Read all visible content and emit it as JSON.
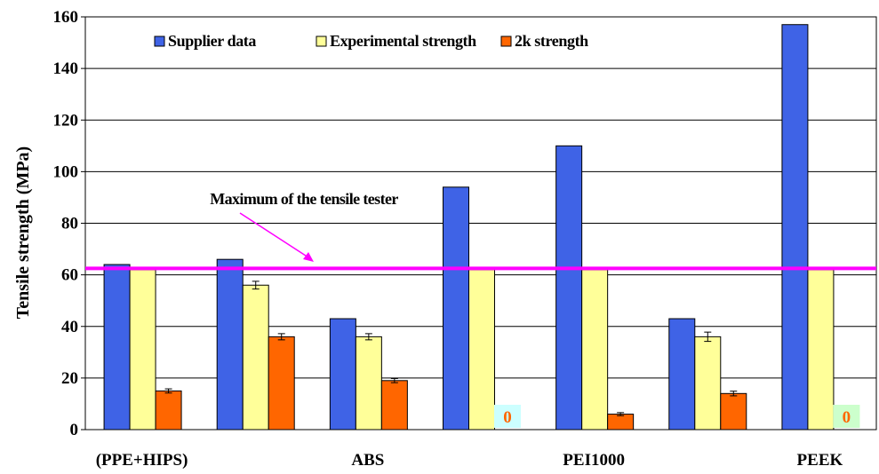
{
  "chart_data": {
    "type": "bar",
    "ylabel": "Tensile strength (MPa)",
    "xlabel": "",
    "ylim": [
      0,
      160
    ],
    "yticks": [
      "0",
      "20",
      "40",
      "60",
      "80",
      "100",
      "120",
      "140",
      "160"
    ],
    "grid": "horizontal",
    "legend_position": "top",
    "groups": 7,
    "category_labels": [
      {
        "text": "(PPE+HIPS)",
        "at_group": 0
      },
      {
        "text": "ABS",
        "at_group": 2
      },
      {
        "text": "PEI1000",
        "at_group": 4
      },
      {
        "text": "PEEK",
        "at_group": 6
      }
    ],
    "series": [
      {
        "name": "Supplier data",
        "color": "#3f63e6",
        "values": [
          64,
          66,
          43,
          94,
          110,
          43,
          157
        ],
        "error": [
          0,
          0,
          0,
          0,
          0,
          0,
          0
        ]
      },
      {
        "name": "Experimental strength",
        "color": "#ffff99",
        "values": [
          62,
          56,
          36,
          62,
          62,
          36,
          62
        ],
        "error": [
          0,
          1.5,
          1.2,
          0,
          0,
          1.8,
          0
        ]
      },
      {
        "name": "2k strength",
        "color": "#ff6600",
        "values": [
          15,
          36,
          19,
          0,
          6,
          14,
          0
        ],
        "error": [
          0.8,
          1.2,
          0.8,
          0,
          0.6,
          0.9,
          0
        ]
      }
    ],
    "reference_line": {
      "value": 62.5,
      "color": "#ff00ff",
      "label": "Maximum of the tensile tester"
    },
    "zero_annotations": [
      {
        "text": "0",
        "group": 3,
        "bg": "#ccffff",
        "color": "#ff6600"
      },
      {
        "text": "0",
        "group": 6,
        "bg": "#ccffcc",
        "color": "#ff6600"
      }
    ]
  }
}
